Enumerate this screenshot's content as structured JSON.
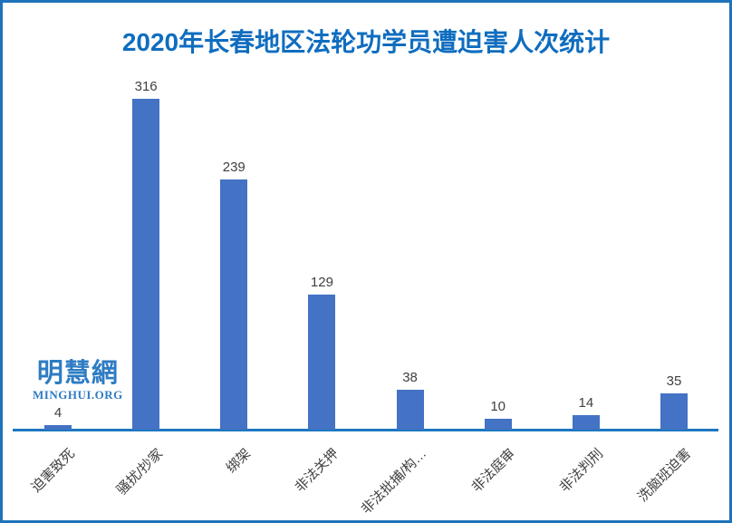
{
  "frame": {
    "border_color": "#1e73ba",
    "background_color": "#ffffff"
  },
  "title": {
    "text": "2020年长春地区法轮功学员遭迫害人次统计",
    "color": "#0f6dbf"
  },
  "logo": {
    "chinese": "明慧網",
    "english": "MINGHUI.ORG",
    "color": "#2e7cc3"
  },
  "chart_data": {
    "type": "bar",
    "title": "2020年长春地区法轮功学员遭迫害人次统计",
    "categories": [
      "迫害致死",
      "骚扰/抄家",
      "绑架",
      "非法关押",
      "非法批捕/构…",
      "非法庭审",
      "非法判刑",
      "洗脑班迫害"
    ],
    "values": [
      4,
      316,
      239,
      129,
      38,
      10,
      14,
      35
    ],
    "xlabel": "",
    "ylabel": "",
    "ylim": [
      0,
      350
    ],
    "bar_color": "#4472c4",
    "axis_line_color": "#1d77c0",
    "value_label_color": "#404040",
    "category_label_color": "#404040",
    "category_label_rotation_deg": 45,
    "data_labels": true,
    "gridlines": false,
    "y_axis_visible": false,
    "legend_position": "none"
  }
}
